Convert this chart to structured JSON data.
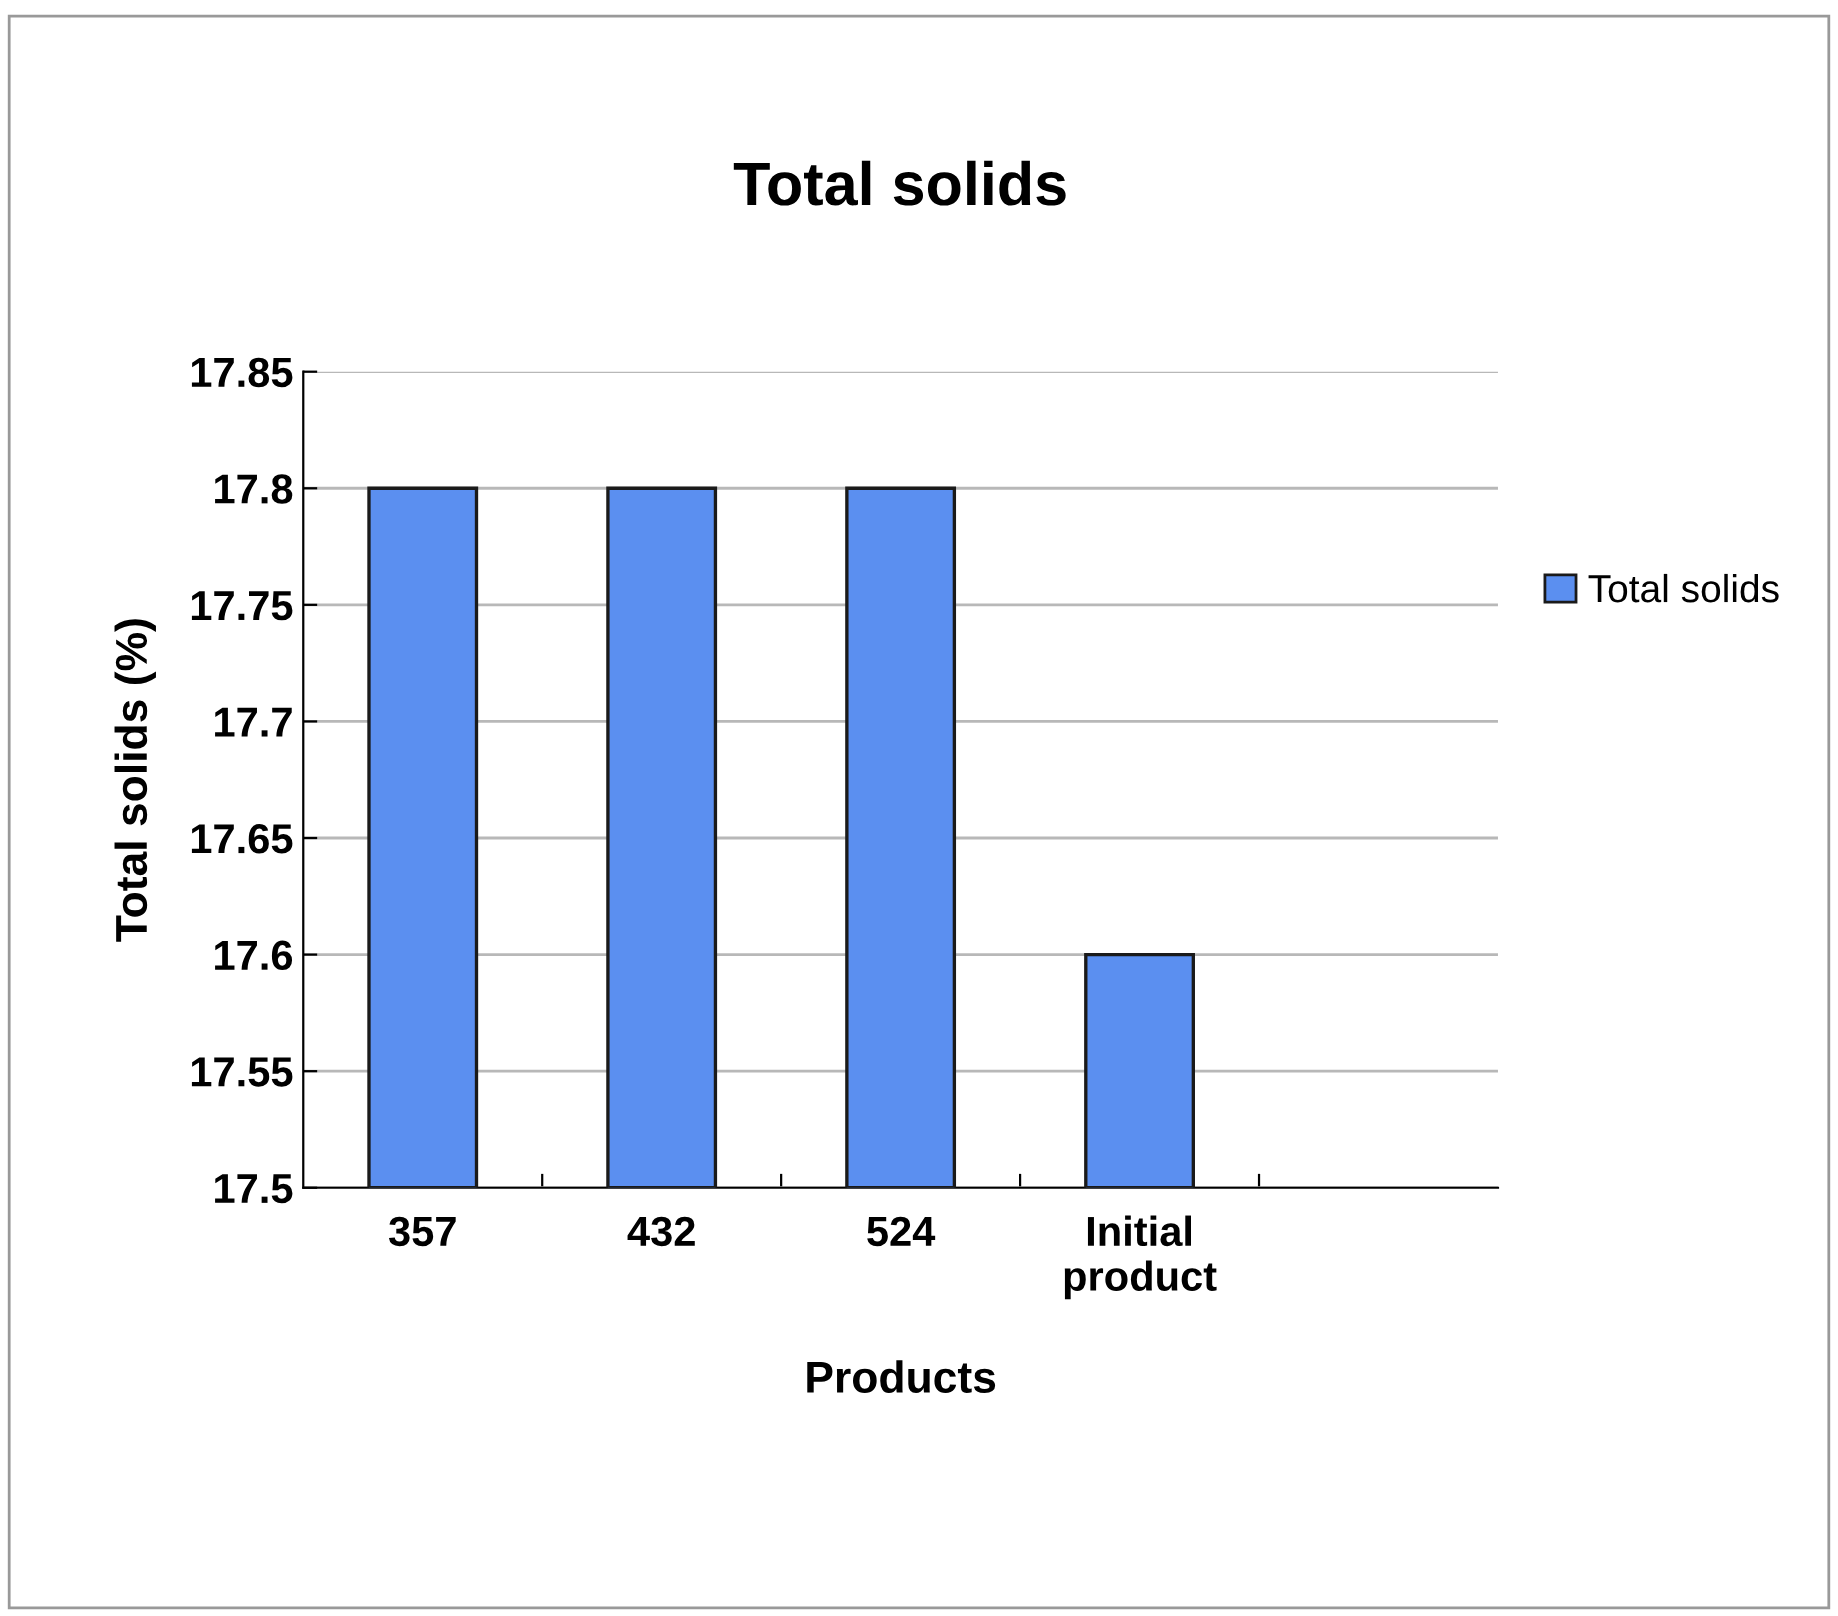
{
  "chart_data": {
    "type": "bar",
    "title": "Total solids",
    "xlabel": "Products",
    "ylabel": "Total solids (%)",
    "categories": [
      "357",
      "432",
      "524",
      "Initial\nproduct",
      null
    ],
    "series": [
      {
        "name": "Total solids",
        "color": "#5b8ff0",
        "values": [
          17.8,
          17.8,
          17.8,
          17.6,
          null
        ]
      }
    ],
    "ylim": [
      17.5,
      17.85
    ],
    "yticks": [
      17.5,
      17.55,
      17.6,
      17.65,
      17.7,
      17.75,
      17.8,
      17.85
    ],
    "grid": "y",
    "legend": "right"
  }
}
